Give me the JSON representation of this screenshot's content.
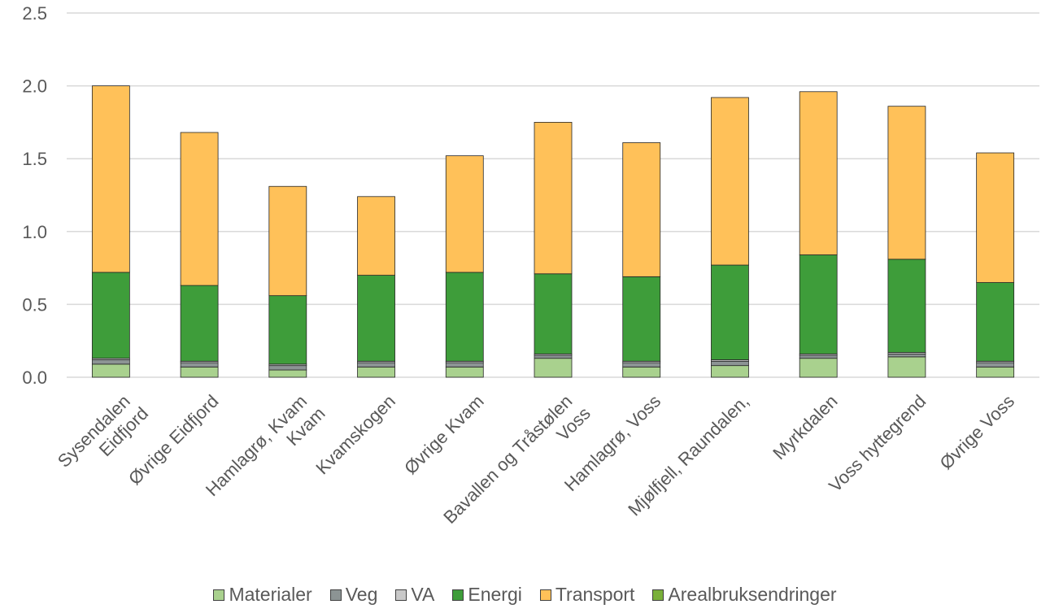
{
  "chart_data": {
    "type": "bar",
    "stacked": true,
    "categories": [
      [
        "Sysendalen",
        "Eidfjord"
      ],
      [
        "Øvrige Eidfjord"
      ],
      [
        "Hamlagrø, Kvam",
        "Kvam"
      ],
      [
        "Kvamskogen"
      ],
      [
        "Øvrige Kvam"
      ],
      [
        "Bavallen og Tråstølen",
        "Voss"
      ],
      [
        "Hamlagrø, Voss"
      ],
      [
        "Mjølfjell, Raundalen,"
      ],
      [
        "Myrkdalen"
      ],
      [
        "Voss hyttegrend"
      ],
      [
        "Øvrige Voss"
      ]
    ],
    "series": [
      {
        "name": "Materialer",
        "color": "#a9d18e",
        "values": [
          0.09,
          0.07,
          0.05,
          0.07,
          0.07,
          0.13,
          0.07,
          0.08,
          0.13,
          0.14,
          0.07
        ]
      },
      {
        "name": "Veg",
        "color": "#8c9494",
        "values": [
          0.03,
          0.03,
          0.03,
          0.03,
          0.03,
          0.02,
          0.03,
          0.03,
          0.02,
          0.02,
          0.03
        ]
      },
      {
        "name": "VA",
        "color": "#c9c9c9",
        "values": [
          0.01,
          0.01,
          0.01,
          0.01,
          0.01,
          0.01,
          0.01,
          0.01,
          0.01,
          0.01,
          0.01
        ]
      },
      {
        "name": "Energi",
        "color": "#3e9d3a",
        "values": [
          0.59,
          0.52,
          0.47,
          0.59,
          0.61,
          0.55,
          0.58,
          0.65,
          0.68,
          0.64,
          0.54
        ]
      },
      {
        "name": "Transport",
        "color": "#ffc159",
        "values": [
          1.28,
          1.05,
          0.75,
          0.54,
          0.8,
          1.04,
          0.92,
          1.15,
          1.12,
          1.05,
          0.89
        ]
      },
      {
        "name": "Arealbruksendringer",
        "color": "#7ab03a",
        "values": [
          0,
          0,
          0,
          0,
          0,
          0,
          0,
          0,
          0,
          0,
          0
        ]
      }
    ],
    "yticks": [
      "0.0",
      "0.5",
      "1.0",
      "1.5",
      "2.0",
      "2.5"
    ],
    "ylim": [
      0,
      2.5
    ],
    "grid": true,
    "legend_position": "bottom"
  }
}
